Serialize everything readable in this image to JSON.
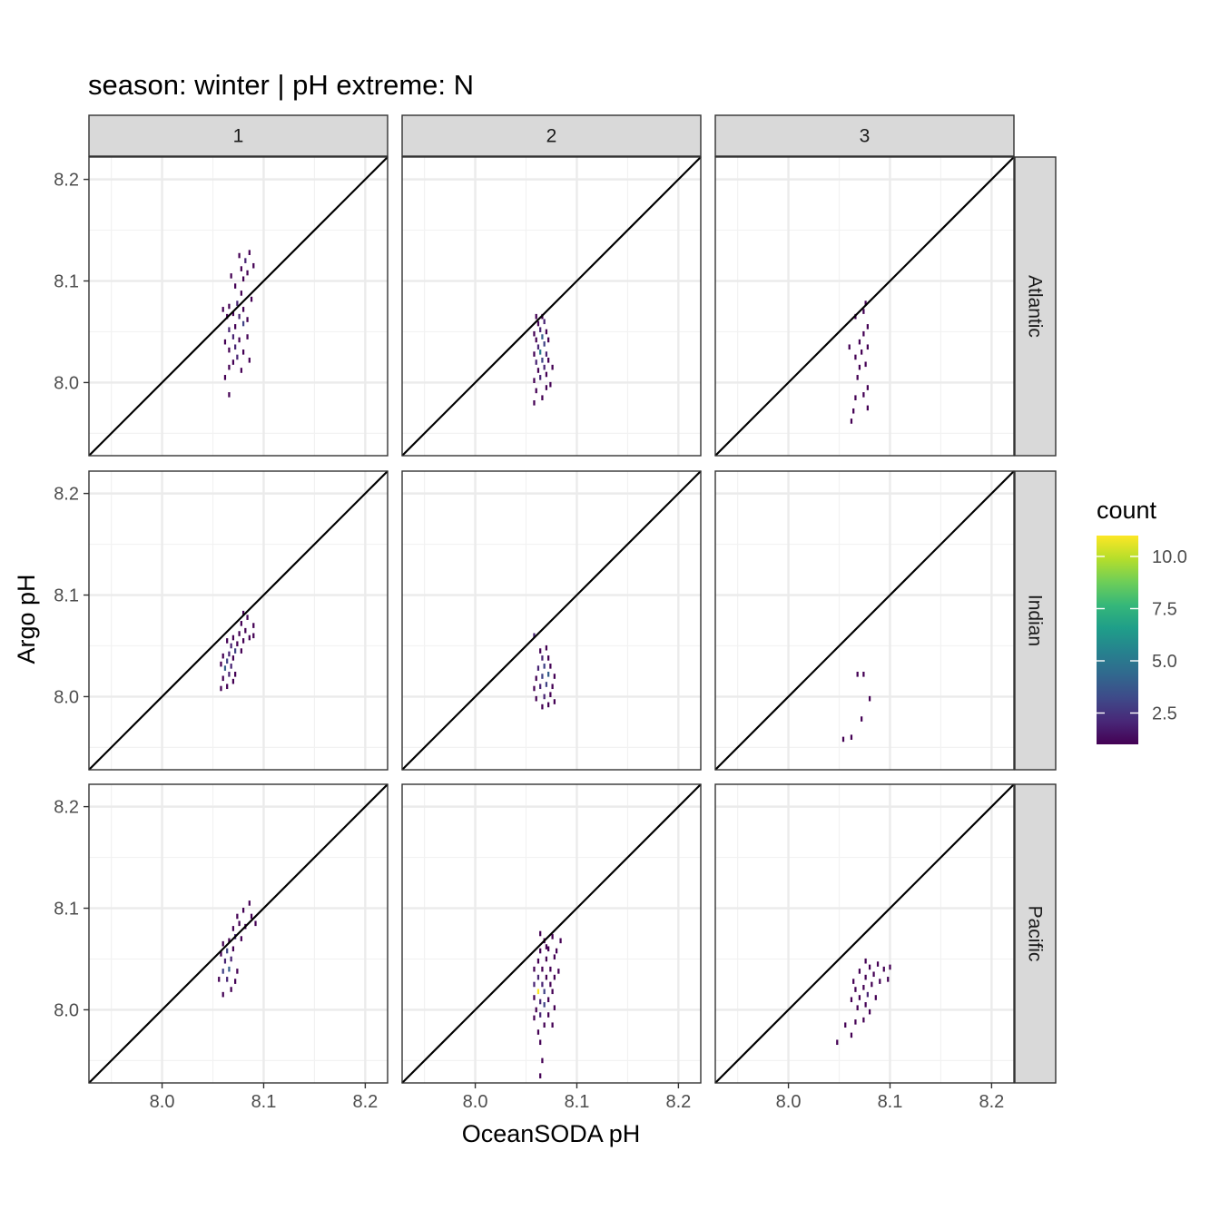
{
  "chart_data": {
    "type": "heatmap",
    "title": "season: winter | pH extreme: N",
    "xlabel": "OceanSODA pH",
    "ylabel": "Argo pH",
    "xlim": [
      7.928,
      8.222
    ],
    "ylim": [
      7.928,
      8.222
    ],
    "x_ticks": [
      8.0,
      8.1,
      8.2
    ],
    "y_ticks": [
      8.0,
      8.1,
      8.2
    ],
    "x_tick_labels": [
      "8.0",
      "8.1",
      "8.2"
    ],
    "y_tick_labels": [
      "8.0",
      "8.1",
      "8.2"
    ],
    "column_facets": [
      "1",
      "2",
      "3"
    ],
    "row_facets": [
      "Atlantic",
      "Indian",
      "Pacific"
    ],
    "reference_line": "y = x",
    "bin_width": [
      0.002,
      0.005
    ],
    "legend": {
      "title": "count",
      "min": 1,
      "max": 11,
      "ticks": [
        2.5,
        5.0,
        7.5,
        10.0
      ],
      "tick_labels": [
        "2.5",
        "5.0",
        "7.5",
        "10.0"
      ],
      "colormap": "viridis",
      "colors": [
        "#440154",
        "#482878",
        "#3e4a89",
        "#31688e",
        "#26828e",
        "#1f9e89",
        "#35b779",
        "#6ece58",
        "#b5de2b",
        "#fde725"
      ]
    },
    "panels": [
      {
        "column": "1",
        "region": "Atlantic",
        "bins": [
          [
            8.066,
            7.988,
            1
          ],
          [
            8.062,
            8.005,
            1
          ],
          [
            8.066,
            8.015,
            1
          ],
          [
            8.078,
            8.012,
            1
          ],
          [
            8.07,
            8.02,
            1
          ],
          [
            8.074,
            8.025,
            2
          ],
          [
            8.086,
            8.022,
            1
          ],
          [
            8.066,
            8.032,
            1
          ],
          [
            8.072,
            8.035,
            2
          ],
          [
            8.08,
            8.03,
            1
          ],
          [
            8.062,
            8.04,
            1
          ],
          [
            8.07,
            8.045,
            2
          ],
          [
            8.076,
            8.042,
            1
          ],
          [
            8.084,
            8.045,
            1
          ],
          [
            8.066,
            8.052,
            2
          ],
          [
            8.072,
            8.055,
            1
          ],
          [
            8.08,
            8.058,
            3
          ],
          [
            8.064,
            8.065,
            1
          ],
          [
            8.07,
            8.068,
            1
          ],
          [
            8.076,
            8.065,
            2
          ],
          [
            8.084,
            8.062,
            1
          ],
          [
            8.066,
            8.075,
            1
          ],
          [
            8.074,
            8.078,
            2
          ],
          [
            8.08,
            8.072,
            1
          ],
          [
            8.088,
            8.082,
            1
          ],
          [
            8.078,
            8.088,
            1
          ],
          [
            8.072,
            8.095,
            1
          ],
          [
            8.08,
            8.102,
            1
          ],
          [
            8.068,
            8.105,
            1
          ],
          [
            8.084,
            8.108,
            1
          ],
          [
            8.078,
            8.112,
            1
          ],
          [
            8.082,
            8.12,
            2
          ],
          [
            8.09,
            8.115,
            1
          ],
          [
            8.086,
            8.128,
            1
          ],
          [
            8.076,
            8.125,
            1
          ],
          [
            8.06,
            8.072,
            1
          ]
        ]
      },
      {
        "column": "2",
        "region": "Atlantic",
        "bins": [
          [
            8.058,
            7.98,
            1
          ],
          [
            8.066,
            7.985,
            1
          ],
          [
            8.06,
            7.992,
            1
          ],
          [
            8.07,
            7.995,
            1
          ],
          [
            8.074,
            7.998,
            1
          ],
          [
            8.058,
            8.002,
            1
          ],
          [
            8.064,
            8.005,
            2
          ],
          [
            8.07,
            8.008,
            1
          ],
          [
            8.062,
            8.012,
            1
          ],
          [
            8.068,
            8.015,
            2
          ],
          [
            8.076,
            8.015,
            1
          ],
          [
            8.06,
            8.02,
            2
          ],
          [
            8.066,
            8.022,
            3
          ],
          [
            8.072,
            8.022,
            1
          ],
          [
            8.058,
            8.028,
            1
          ],
          [
            8.064,
            8.03,
            5
          ],
          [
            8.07,
            8.028,
            2
          ],
          [
            8.062,
            8.035,
            2
          ],
          [
            8.068,
            8.038,
            3
          ],
          [
            8.06,
            8.042,
            1
          ],
          [
            8.066,
            8.045,
            4
          ],
          [
            8.072,
            8.042,
            1
          ],
          [
            8.058,
            8.048,
            1
          ],
          [
            8.064,
            8.052,
            2
          ],
          [
            8.07,
            8.05,
            1
          ],
          [
            8.062,
            8.058,
            1
          ],
          [
            8.068,
            8.06,
            2
          ],
          [
            8.06,
            8.065,
            1
          ],
          [
            8.066,
            8.065,
            1
          ]
        ]
      },
      {
        "column": "3",
        "region": "Atlantic",
        "bins": [
          [
            8.062,
            7.962,
            1
          ],
          [
            8.064,
            7.972,
            1
          ],
          [
            8.078,
            7.975,
            1
          ],
          [
            8.066,
            7.985,
            1
          ],
          [
            8.074,
            7.988,
            1
          ],
          [
            8.078,
            7.995,
            1
          ],
          [
            8.068,
            8.005,
            1
          ],
          [
            8.07,
            8.015,
            1
          ],
          [
            8.076,
            8.018,
            1
          ],
          [
            8.066,
            8.025,
            1
          ],
          [
            8.072,
            8.03,
            1
          ],
          [
            8.06,
            8.035,
            1
          ],
          [
            8.078,
            8.035,
            1
          ],
          [
            8.07,
            8.04,
            1
          ],
          [
            8.074,
            8.048,
            1
          ],
          [
            8.078,
            8.055,
            1
          ],
          [
            8.066,
            8.065,
            1
          ],
          [
            8.074,
            8.07,
            1
          ],
          [
            8.076,
            8.078,
            1
          ]
        ]
      },
      {
        "column": "1",
        "region": "Indian",
        "bins": [
          [
            8.058,
            8.008,
            1
          ],
          [
            8.064,
            8.01,
            1
          ],
          [
            8.07,
            8.015,
            1
          ],
          [
            8.06,
            8.018,
            1
          ],
          [
            8.066,
            8.022,
            2
          ],
          [
            8.072,
            8.022,
            1
          ],
          [
            8.062,
            8.028,
            4
          ],
          [
            8.068,
            8.03,
            2
          ],
          [
            8.058,
            8.032,
            1
          ],
          [
            8.064,
            8.035,
            3
          ],
          [
            8.07,
            8.038,
            1
          ],
          [
            8.06,
            8.04,
            1
          ],
          [
            8.066,
            8.042,
            2
          ],
          [
            8.072,
            8.045,
            3
          ],
          [
            8.078,
            8.045,
            1
          ],
          [
            8.068,
            8.05,
            2
          ],
          [
            8.074,
            8.052,
            1
          ],
          [
            8.064,
            8.055,
            1
          ],
          [
            8.08,
            8.055,
            1
          ],
          [
            8.07,
            8.058,
            1
          ],
          [
            8.076,
            8.062,
            1
          ],
          [
            8.086,
            8.058,
            1
          ],
          [
            8.09,
            8.06,
            1
          ],
          [
            8.082,
            8.065,
            1
          ],
          [
            8.078,
            8.072,
            1
          ],
          [
            8.084,
            8.078,
            1
          ],
          [
            8.08,
            8.082,
            1
          ],
          [
            8.09,
            8.07,
            1
          ]
        ]
      },
      {
        "column": "2",
        "region": "Indian",
        "bins": [
          [
            8.066,
            7.99,
            1
          ],
          [
            8.072,
            7.992,
            1
          ],
          [
            8.078,
            7.995,
            1
          ],
          [
            8.06,
            7.998,
            1
          ],
          [
            8.068,
            8.0,
            2
          ],
          [
            8.074,
            8.002,
            1
          ],
          [
            8.058,
            8.008,
            1
          ],
          [
            8.064,
            8.01,
            2
          ],
          [
            8.07,
            8.012,
            3
          ],
          [
            8.076,
            8.01,
            1
          ],
          [
            8.06,
            8.018,
            1
          ],
          [
            8.066,
            8.02,
            3
          ],
          [
            8.072,
            8.022,
            4
          ],
          [
            8.078,
            8.02,
            1
          ],
          [
            8.062,
            8.028,
            2
          ],
          [
            8.068,
            8.03,
            3
          ],
          [
            8.074,
            8.03,
            1
          ],
          [
            8.066,
            8.038,
            2
          ],
          [
            8.072,
            8.038,
            1
          ],
          [
            8.064,
            8.045,
            1
          ],
          [
            8.07,
            8.048,
            1
          ],
          [
            8.058,
            8.06,
            2
          ]
        ]
      },
      {
        "column": "3",
        "region": "Indian",
        "bins": [
          [
            8.054,
            7.958,
            1
          ],
          [
            8.062,
            7.96,
            1
          ],
          [
            8.072,
            7.978,
            1
          ],
          [
            8.08,
            7.998,
            1
          ],
          [
            8.068,
            8.022,
            1
          ],
          [
            8.074,
            8.022,
            1
          ]
        ]
      },
      {
        "column": "1",
        "region": "Pacific",
        "bins": [
          [
            8.06,
            8.015,
            1
          ],
          [
            8.068,
            8.02,
            1
          ],
          [
            8.056,
            8.03,
            1
          ],
          [
            8.064,
            8.03,
            2
          ],
          [
            8.072,
            8.028,
            1
          ],
          [
            8.06,
            8.038,
            3
          ],
          [
            8.066,
            8.04,
            4
          ],
          [
            8.074,
            8.038,
            1
          ],
          [
            8.062,
            8.048,
            2
          ],
          [
            8.068,
            8.05,
            2
          ],
          [
            8.058,
            8.055,
            1
          ],
          [
            8.064,
            8.058,
            3
          ],
          [
            8.07,
            8.06,
            1
          ],
          [
            8.06,
            8.065,
            1
          ],
          [
            8.066,
            8.068,
            1
          ],
          [
            8.072,
            8.072,
            2
          ],
          [
            8.078,
            8.07,
            1
          ],
          [
            8.07,
            8.08,
            1
          ],
          [
            8.076,
            8.085,
            1
          ],
          [
            8.082,
            8.082,
            1
          ],
          [
            8.074,
            8.092,
            1
          ],
          [
            8.08,
            8.098,
            1
          ],
          [
            8.088,
            8.092,
            1
          ],
          [
            8.092,
            8.085,
            1
          ],
          [
            8.086,
            8.105,
            1
          ]
        ]
      },
      {
        "column": "2",
        "region": "Pacific",
        "bins": [
          [
            8.064,
            7.935,
            1
          ],
          [
            8.066,
            7.95,
            1
          ],
          [
            8.064,
            7.968,
            1
          ],
          [
            8.062,
            7.978,
            1
          ],
          [
            8.068,
            7.985,
            1
          ],
          [
            8.076,
            7.985,
            1
          ],
          [
            8.058,
            7.992,
            1
          ],
          [
            8.064,
            7.995,
            2
          ],
          [
            8.072,
            7.995,
            1
          ],
          [
            8.06,
            8.0,
            1
          ],
          [
            8.068,
            8.005,
            3
          ],
          [
            8.078,
            8.002,
            1
          ],
          [
            8.064,
            8.008,
            2
          ],
          [
            8.072,
            8.01,
            1
          ],
          [
            8.058,
            8.012,
            1
          ],
          [
            8.062,
            8.018,
            11
          ],
          [
            8.068,
            8.018,
            3
          ],
          [
            8.076,
            8.018,
            1
          ],
          [
            8.058,
            8.025,
            2
          ],
          [
            8.066,
            8.025,
            2
          ],
          [
            8.074,
            8.025,
            1
          ],
          [
            8.062,
            8.032,
            2
          ],
          [
            8.07,
            8.032,
            1
          ],
          [
            8.078,
            8.032,
            1
          ],
          [
            8.058,
            8.04,
            1
          ],
          [
            8.066,
            8.04,
            1
          ],
          [
            8.074,
            8.04,
            1
          ],
          [
            8.082,
            8.038,
            1
          ],
          [
            8.062,
            8.048,
            1
          ],
          [
            8.07,
            8.05,
            1
          ],
          [
            8.078,
            8.052,
            1
          ],
          [
            8.064,
            8.058,
            1
          ],
          [
            8.072,
            8.06,
            1
          ],
          [
            8.08,
            8.058,
            1
          ],
          [
            8.068,
            8.068,
            1
          ],
          [
            8.076,
            8.072,
            1
          ],
          [
            8.064,
            8.075,
            1
          ],
          [
            8.084,
            8.068,
            1
          ],
          [
            8.07,
            8.062,
            1
          ]
        ]
      },
      {
        "column": "3",
        "region": "Pacific",
        "bins": [
          [
            8.048,
            7.968,
            1
          ],
          [
            8.062,
            7.975,
            1
          ],
          [
            8.056,
            7.985,
            1
          ],
          [
            8.066,
            7.988,
            1
          ],
          [
            8.074,
            7.99,
            1
          ],
          [
            8.08,
            7.998,
            1
          ],
          [
            8.068,
            8.002,
            1
          ],
          [
            8.076,
            8.005,
            1
          ],
          [
            8.062,
            8.01,
            1
          ],
          [
            8.07,
            8.012,
            1
          ],
          [
            8.078,
            8.015,
            2
          ],
          [
            8.086,
            8.012,
            1
          ],
          [
            8.066,
            8.02,
            1
          ],
          [
            8.074,
            8.022,
            1
          ],
          [
            8.082,
            8.025,
            1
          ],
          [
            8.064,
            8.028,
            1
          ],
          [
            8.09,
            8.028,
            1
          ],
          [
            8.098,
            8.03,
            1
          ],
          [
            8.076,
            8.032,
            1
          ],
          [
            8.084,
            8.035,
            1
          ],
          [
            8.07,
            8.038,
            1
          ],
          [
            8.094,
            8.04,
            1
          ],
          [
            8.08,
            8.042,
            1
          ],
          [
            8.088,
            8.045,
            1
          ],
          [
            8.1,
            8.042,
            1
          ],
          [
            8.076,
            8.048,
            1
          ]
        ]
      }
    ]
  }
}
